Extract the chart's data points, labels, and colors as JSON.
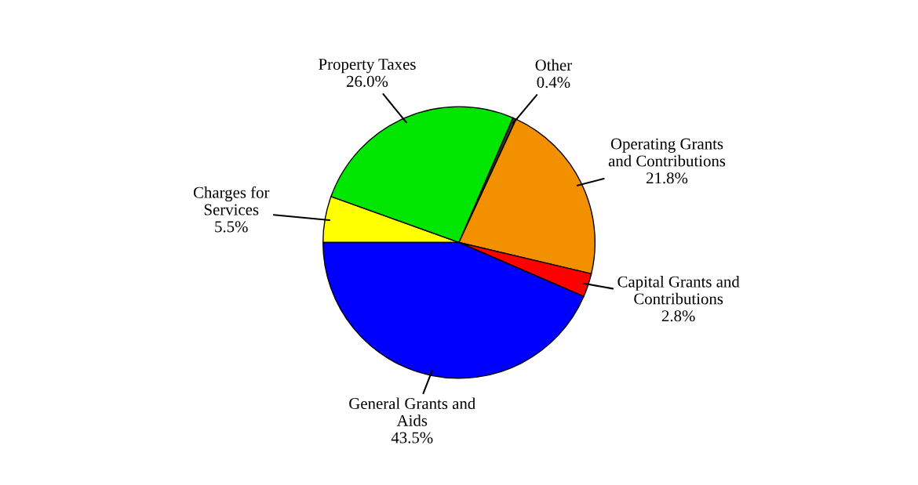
{
  "chart_data": {
    "type": "pie",
    "categories": [
      "Charges for\nServices",
      "Property Taxes",
      "Other",
      "Operating Grants\nand Contributions",
      "Capital Grants and\nContributions",
      "General Grants and\nAids"
    ],
    "values": [
      5.5,
      26.0,
      0.4,
      21.8,
      2.8,
      43.5
    ],
    "value_labels": [
      "5.5%",
      "26.0%",
      "0.4%",
      "21.8%",
      "2.8%",
      "43.5%"
    ],
    "colors": [
      "#ffff00",
      "#00e600",
      "#333333",
      "#f39000",
      "#ff0000",
      "#0000ff"
    ],
    "legend": false
  }
}
